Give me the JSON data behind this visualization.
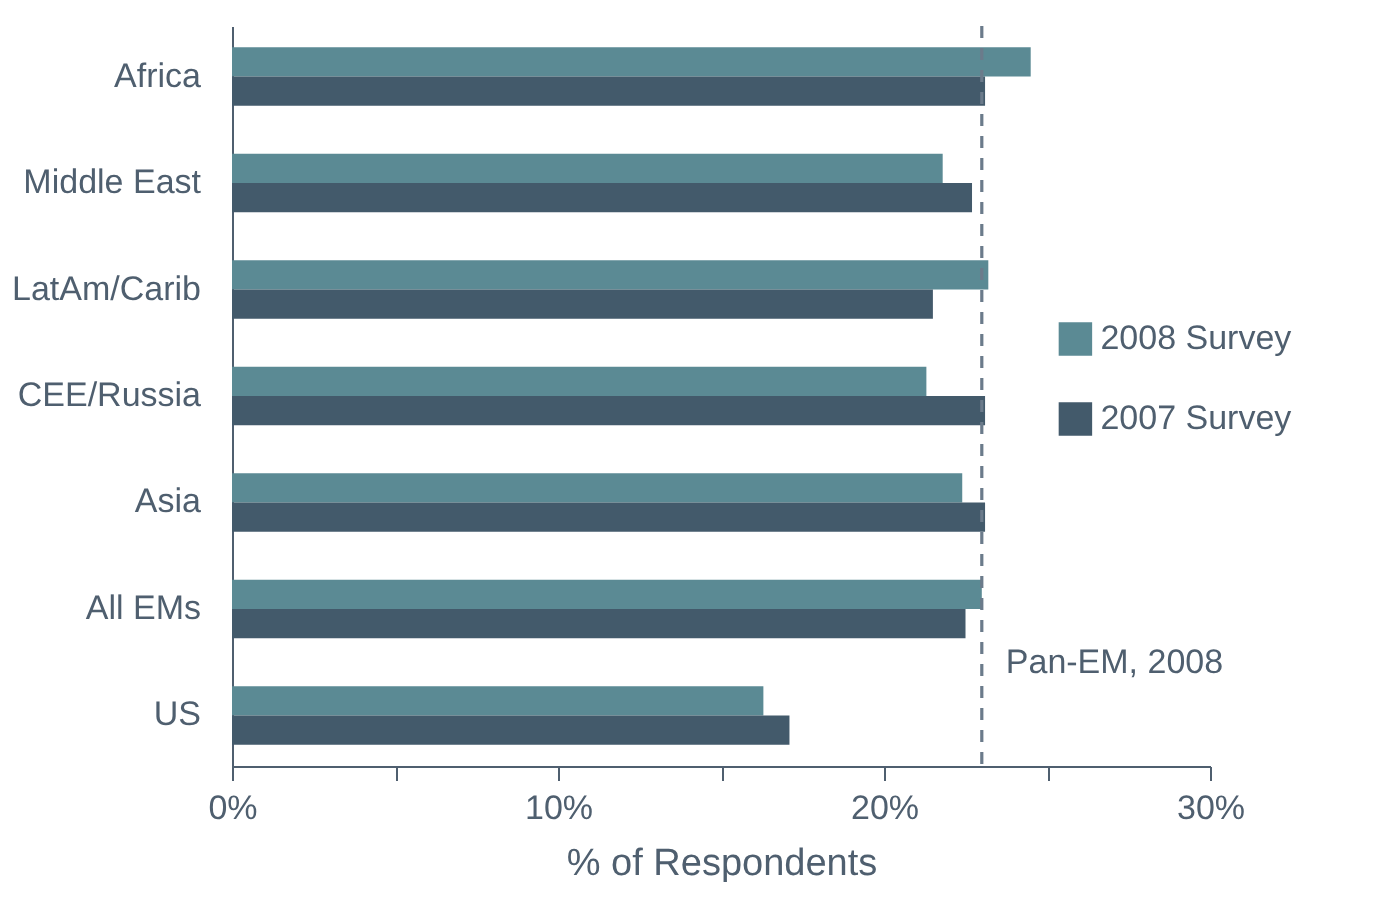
{
  "chart_data": {
    "type": "bar",
    "orientation": "horizontal",
    "xlabel": "% of Respondents",
    "categories": [
      "Africa",
      "Middle East",
      "LatAm/Carib",
      "CEE/Russia",
      "Asia",
      "All EMs",
      "US"
    ],
    "series": [
      {
        "name": "2008 Survey",
        "color": "#5b8a94",
        "values": [
          24.5,
          21.8,
          23.2,
          21.3,
          22.4,
          23.0,
          16.3
        ]
      },
      {
        "name": "2007 Survey",
        "color": "#435a6b",
        "values": [
          23.1,
          22.7,
          21.5,
          23.1,
          23.1,
          22.5,
          17.1
        ]
      }
    ],
    "xlim": [
      0,
      30
    ],
    "xticks": [
      {
        "value": 0,
        "label": "0%"
      },
      {
        "value": 5,
        "label": null
      },
      {
        "value": 10,
        "label": "10%"
      },
      {
        "value": 15,
        "label": null
      },
      {
        "value": 20,
        "label": "20%"
      },
      {
        "value": 25,
        "label": null
      },
      {
        "value": 30,
        "label": "30%"
      }
    ],
    "ref_lines": [
      {
        "axis": "x",
        "value": 23.0,
        "label": "Pan-EM, 2008",
        "color": "#6b7b8b",
        "line_style": "dashed"
      }
    ],
    "legend": "right",
    "grid": false
  }
}
